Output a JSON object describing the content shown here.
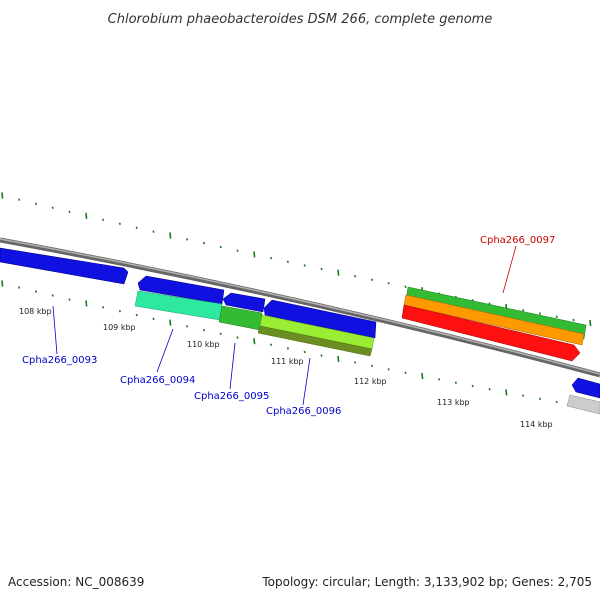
{
  "title": "Chlorobium phaeobacteroides DSM 266, complete genome",
  "footer": {
    "accession": "Accession: NC_008639",
    "topology": "Topology: circular; Length: 3,133,902 bp; Genes: 2,705"
  },
  "scale_labels": [
    "108 kbp",
    "109 kbp",
    "110 kbp",
    "111 kbp",
    "112 kbp",
    "113 kbp",
    "114 kbp"
  ],
  "gene_labels": [
    {
      "text": "Cpha266_0093",
      "color": "#0000cc"
    },
    {
      "text": "Cpha266_0094",
      "color": "#0000cc"
    },
    {
      "text": "Cpha266_0095",
      "color": "#0000cc"
    },
    {
      "text": "Cpha266_0096",
      "color": "#0000cc"
    },
    {
      "text": "Cpha266_0097",
      "color": "#cc0000"
    }
  ],
  "colors": {
    "backbone": "#8a8a8a",
    "tick": "#1a7a1a",
    "blue_gene": "#1010e0",
    "teal_gene": "#2ee8a0",
    "green_gene": "#33bb33",
    "lime_gene": "#99ee33",
    "olive_gene": "#6b8e23",
    "orange_gene": "#ff9900",
    "red_gene": "#ff1010",
    "gray_gene": "#cccccc"
  }
}
